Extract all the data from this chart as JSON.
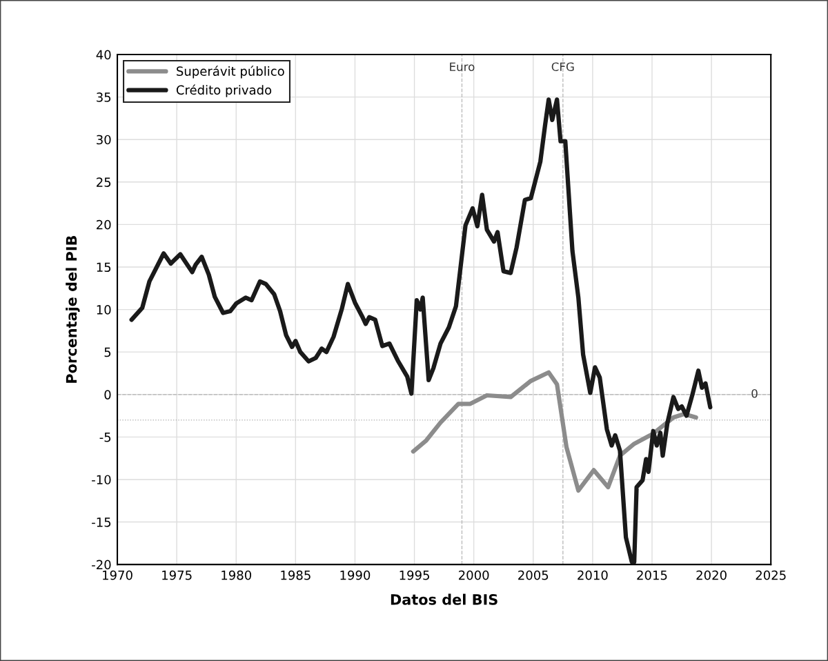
{
  "chart_data": {
    "type": "line",
    "xlabel": "Datos del BIS",
    "ylabel": "Porcentaje del PIB",
    "xlim": [
      1970,
      2025
    ],
    "xticks": [
      1970,
      1975,
      1980,
      1985,
      1990,
      1995,
      2000,
      2005,
      2010,
      2015,
      2020,
      2025
    ],
    "ylim": [
      -20,
      40
    ],
    "yticks": [
      -20,
      -15,
      -10,
      -5,
      0,
      5,
      10,
      15,
      20,
      25,
      30,
      35,
      40
    ],
    "grid": true,
    "legend": "top left",
    "line_style": "solid",
    "ref_lines": [
      {
        "axis": "x",
        "value": 1999,
        "label": "Euro",
        "color": "#bbbbbb",
        "line_style": "dashed"
      },
      {
        "axis": "x",
        "value": 2007.5,
        "label": "CFG",
        "color": "#bbbbbb",
        "line_style": "dashed"
      },
      {
        "axis": "y",
        "value": 0,
        "label": "0",
        "color": "#bbbbbb",
        "line_style": "dashed"
      },
      {
        "axis": "y",
        "value": -3,
        "color": "#bbbbbb",
        "line_style": "dotted"
      }
    ],
    "series": [
      {
        "name": "Superávit público",
        "color": "#8c8c8c",
        "x": [
          1994.9,
          1996.0,
          1997.2,
          1998.7,
          1999.7,
          2001.1,
          2003.1,
          2004.8,
          2006.3,
          2007.0,
          2007.8,
          2008.8,
          2010.1,
          2011.3,
          2012.3,
          2013.5,
          2015.1,
          2016.8,
          2017.7,
          2018.7
        ],
        "values": [
          -6.7,
          -5.4,
          -3.3,
          -1.1,
          -1.1,
          -0.1,
          -0.3,
          1.6,
          2.6,
          1.2,
          -6.2,
          -11.3,
          -8.9,
          -10.9,
          -7.2,
          -5.8,
          -4.6,
          -2.7,
          -2.3,
          -2.7
        ]
      },
      {
        "name": "Crédito privado",
        "color": "#1a1a1a",
        "x": [
          1971.2,
          1972.1,
          1972.7,
          1973.9,
          1974.5,
          1975.3,
          1976.3,
          1976.6,
          1977.1,
          1977.7,
          1978.2,
          1978.9,
          1979.5,
          1980.0,
          1980.8,
          1981.3,
          1982.0,
          1982.5,
          1983.2,
          1983.7,
          1984.2,
          1984.7,
          1985.0,
          1985.4,
          1986.1,
          1986.7,
          1987.2,
          1987.6,
          1988.2,
          1988.9,
          1989.4,
          1990.0,
          1990.6,
          1990.9,
          1991.2,
          1991.7,
          1992.3,
          1992.9,
          1993.6,
          1994.4,
          1994.75,
          1995.2,
          1995.5,
          1995.7,
          1996.2,
          1996.6,
          1997.2,
          1997.9,
          1998.5,
          1999.3,
          1999.9,
          2000.3,
          2000.7,
          2001.1,
          2001.7,
          2002.0,
          2002.5,
          2003.1,
          2003.6,
          2004.3,
          2004.8,
          2005.6,
          2006.0,
          2006.3,
          2006.6,
          2007.0,
          2007.3,
          2007.7,
          2008.3,
          2008.8,
          2009.2,
          2009.8,
          2010.2,
          2010.6,
          2011.2,
          2011.6,
          2011.9,
          2012.3,
          2012.8,
          2013.3,
          2013.5,
          2013.7,
          2014.2,
          2014.5,
          2014.7,
          2015.1,
          2015.4,
          2015.7,
          2015.9,
          2016.3,
          2016.8,
          2017.2,
          2017.5,
          2017.9,
          2018.4,
          2018.9,
          2019.2,
          2019.5,
          2019.9
        ],
        "values": [
          8.8,
          10.2,
          13.3,
          16.6,
          15.4,
          16.5,
          14.4,
          15.3,
          16.2,
          14.1,
          11.5,
          9.6,
          9.8,
          10.7,
          11.4,
          11.1,
          13.3,
          13.0,
          11.8,
          9.8,
          7.0,
          5.6,
          6.3,
          5.0,
          3.9,
          4.3,
          5.4,
          5.0,
          6.8,
          10.1,
          13.0,
          10.8,
          9.2,
          8.3,
          9.1,
          8.8,
          5.7,
          6.0,
          4.0,
          2.1,
          0.1,
          11.1,
          10.0,
          11.4,
          1.7,
          3.1,
          6.0,
          7.9,
          10.4,
          19.9,
          21.9,
          19.8,
          23.5,
          19.4,
          18.0,
          19.1,
          14.5,
          14.3,
          17.3,
          22.9,
          23.1,
          27.4,
          31.7,
          34.7,
          32.3,
          34.7,
          29.8,
          29.8,
          16.9,
          11.4,
          4.7,
          0.2,
          3.2,
          2.0,
          -4.1,
          -6.0,
          -4.8,
          -6.6,
          -16.8,
          -19.7,
          -19.7,
          -10.9,
          -10.1,
          -7.6,
          -9.1,
          -4.3,
          -6.0,
          -4.5,
          -7.2,
          -3.3,
          -0.3,
          -1.7,
          -1.4,
          -2.5,
          0.0,
          2.8,
          0.8,
          1.3,
          -1.5
        ]
      }
    ]
  }
}
